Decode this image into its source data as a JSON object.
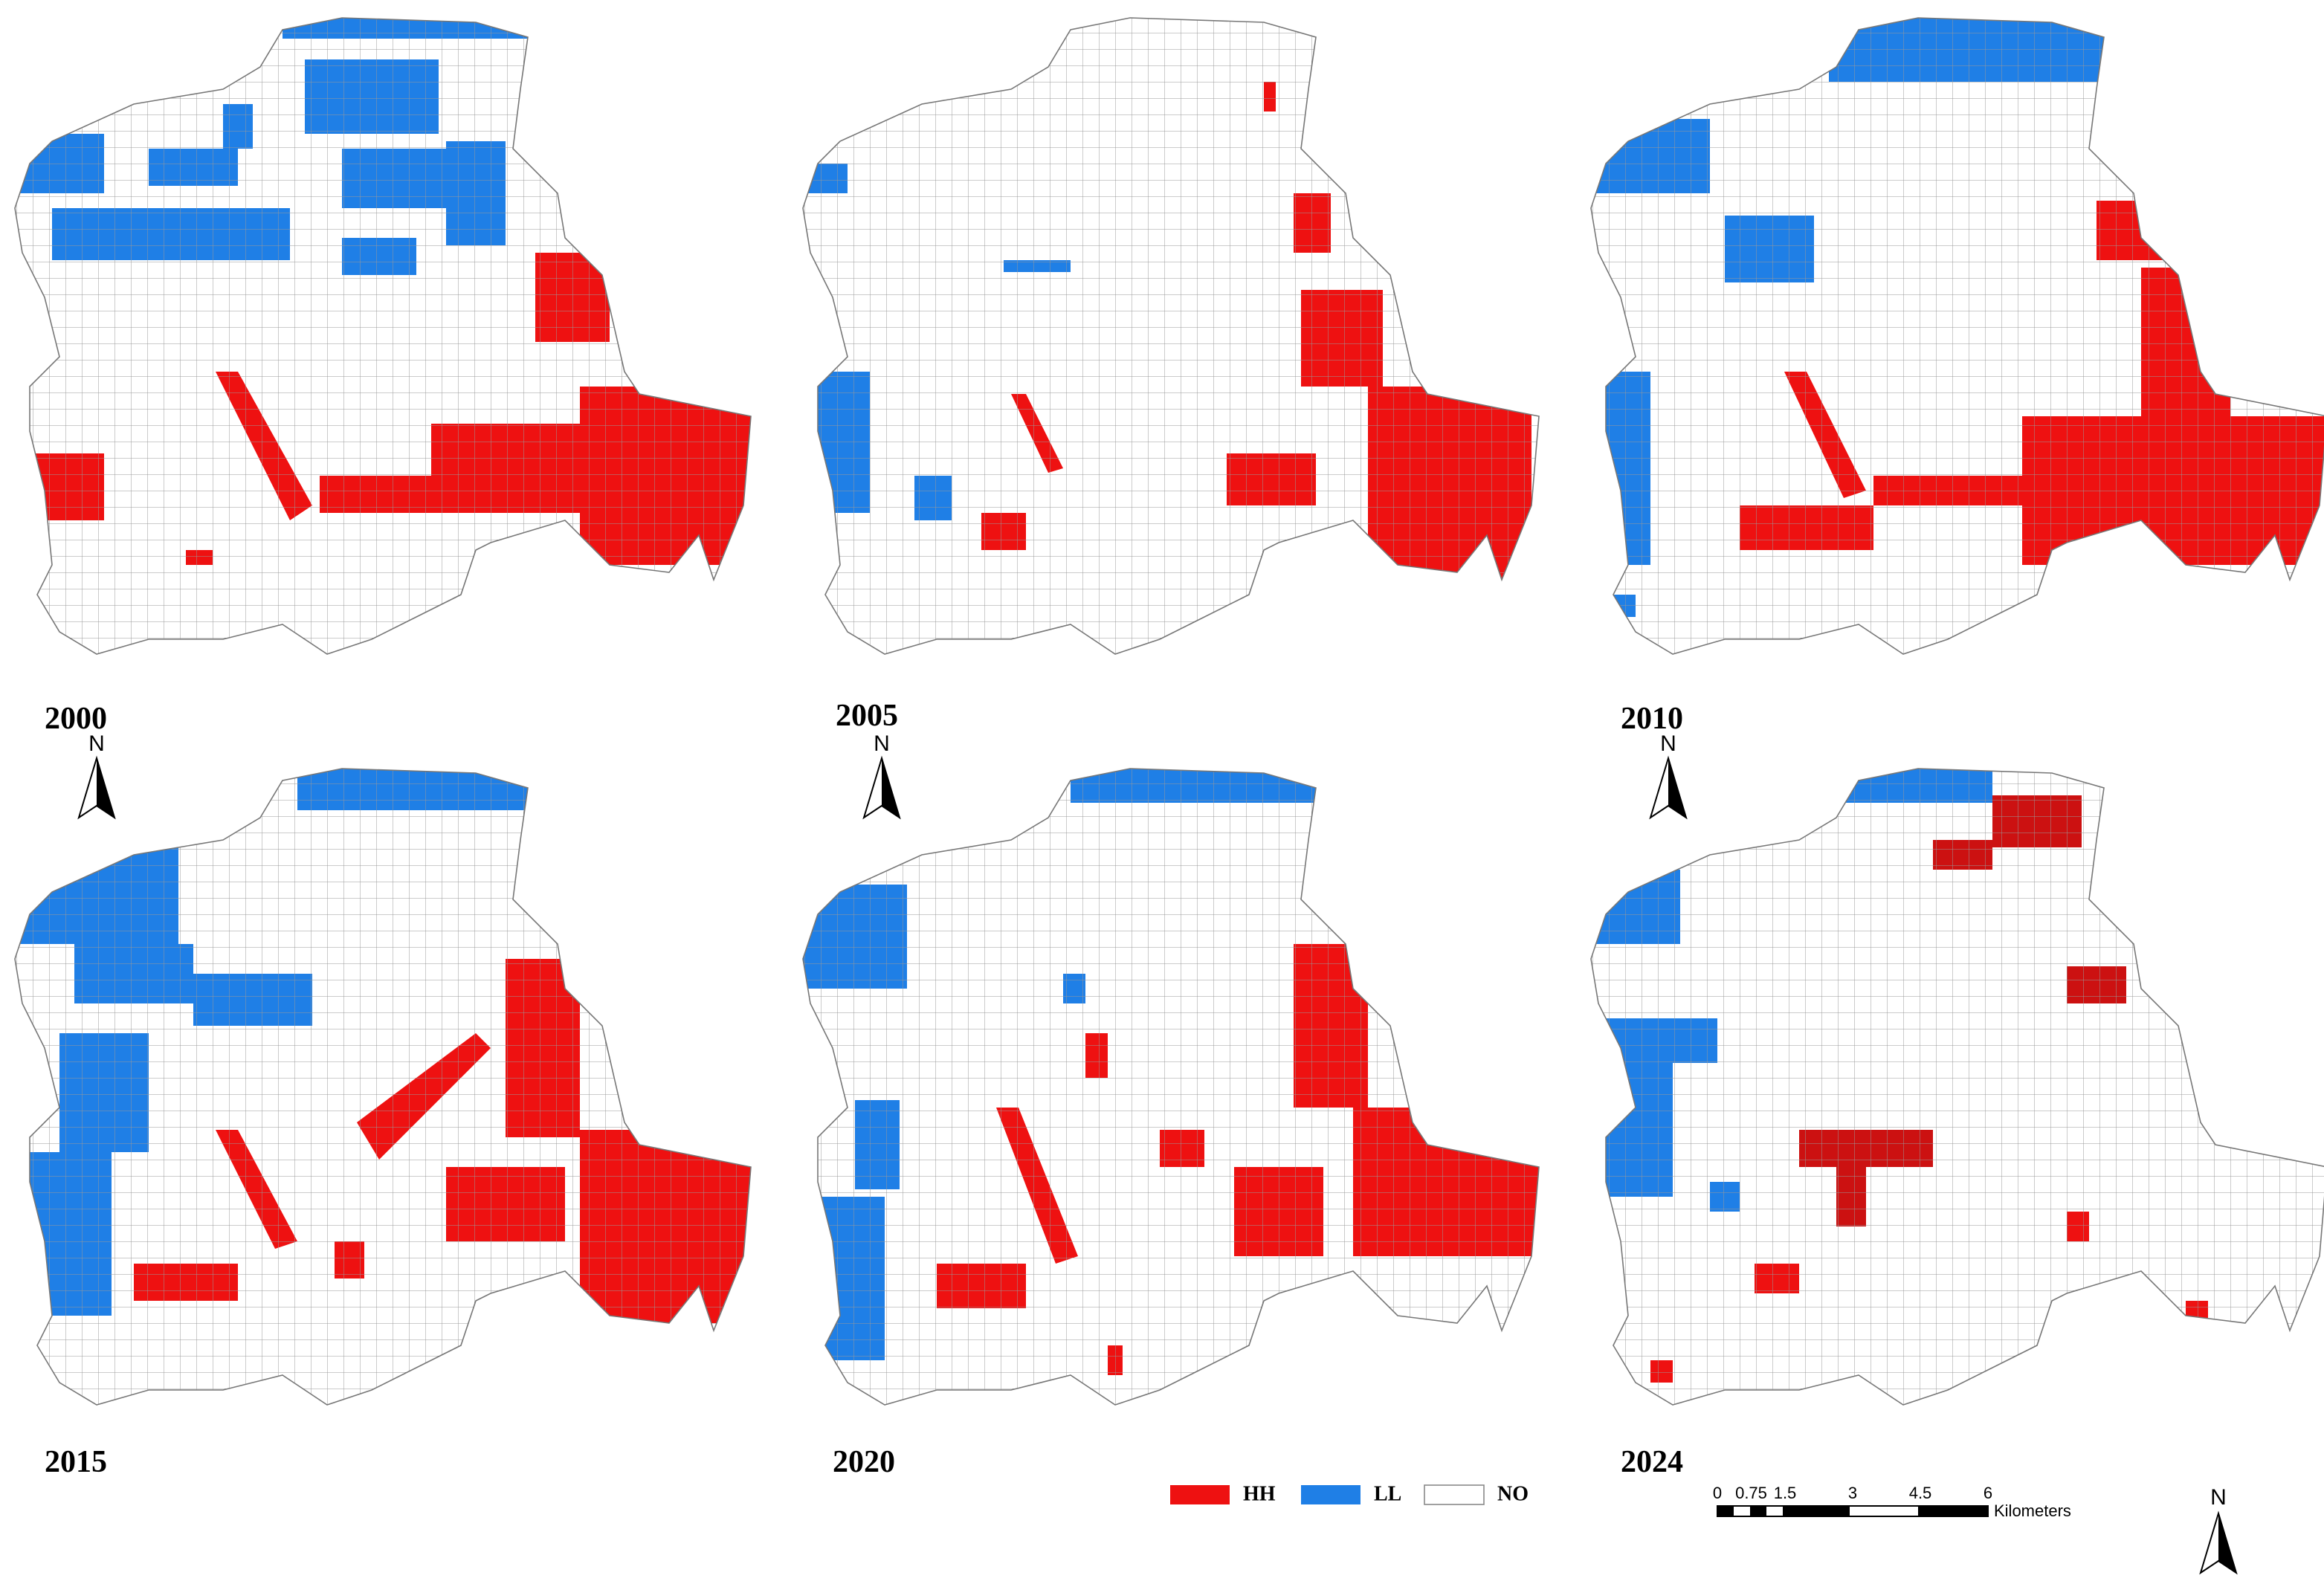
{
  "panels": [
    {
      "year": "2000"
    },
    {
      "year": "2005"
    },
    {
      "year": "2010"
    },
    {
      "year": "2015"
    },
    {
      "year": "2020"
    },
    {
      "year": "2024"
    }
  ],
  "legend": {
    "items": [
      "HH",
      "LL",
      "NO"
    ]
  },
  "north_label": "N",
  "scale_bar": {
    "labels": [
      0,
      0.75,
      1.5,
      3,
      4.5,
      6
    ],
    "unit": "Kilometers"
  }
}
